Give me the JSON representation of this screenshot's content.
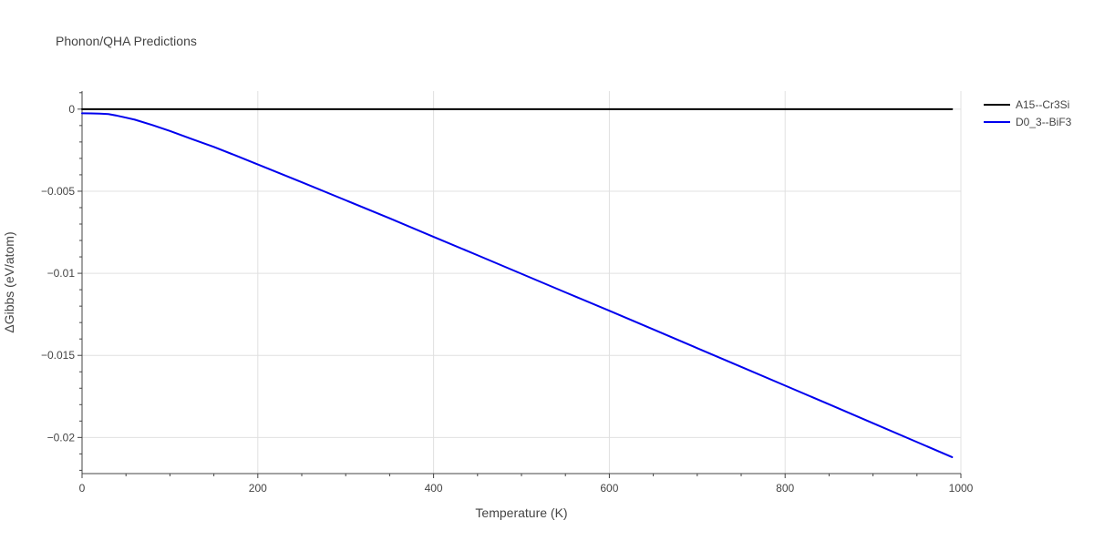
{
  "chart_data": {
    "type": "line",
    "title": "Phonon/QHA Predictions",
    "xlabel": "Temperature (K)",
    "ylabel": "ΔGibbs (eV/atom)",
    "xlim": [
      0,
      1000
    ],
    "ylim": [
      -0.0222,
      0.0011
    ],
    "x_ticks": [
      0,
      200,
      400,
      600,
      800,
      1000
    ],
    "x_tick_labels": [
      "0",
      "200",
      "400",
      "600",
      "800",
      "1000"
    ],
    "y_ticks": [
      0,
      -0.005,
      -0.01,
      -0.015,
      -0.02
    ],
    "y_tick_labels": [
      "0",
      "−0.005",
      "−0.01",
      "−0.015",
      "−0.02"
    ],
    "grid": true,
    "legend_position": "top-right",
    "series": [
      {
        "name": "A15--Cr3Si",
        "color": "#000000",
        "x": [
          0,
          100,
          200,
          300,
          400,
          500,
          600,
          700,
          800,
          900,
          990
        ],
        "y": [
          0,
          0,
          0,
          0,
          0,
          0,
          0,
          0,
          0,
          0,
          0
        ]
      },
      {
        "name": "D0_3--BiF3",
        "color": "#0000ee",
        "x": [
          0,
          10,
          20,
          30,
          40,
          50,
          60,
          80,
          100,
          125,
          150,
          175,
          200,
          250,
          300,
          350,
          400,
          450,
          500,
          550,
          600,
          650,
          700,
          750,
          800,
          850,
          900,
          950,
          990
        ],
        "y": [
          -0.00025,
          -0.00026,
          -0.00027,
          -0.0003,
          -0.0004,
          -0.00052,
          -0.00064,
          -0.00097,
          -0.00133,
          -0.00182,
          -0.0023,
          -0.00283,
          -0.00337,
          -0.00445,
          -0.00555,
          -0.00665,
          -0.00778,
          -0.0089,
          -0.01003,
          -0.01116,
          -0.01228,
          -0.01342,
          -0.01456,
          -0.0157,
          -0.01684,
          -0.01798,
          -0.01913,
          -0.02028,
          -0.0212
        ]
      }
    ]
  }
}
